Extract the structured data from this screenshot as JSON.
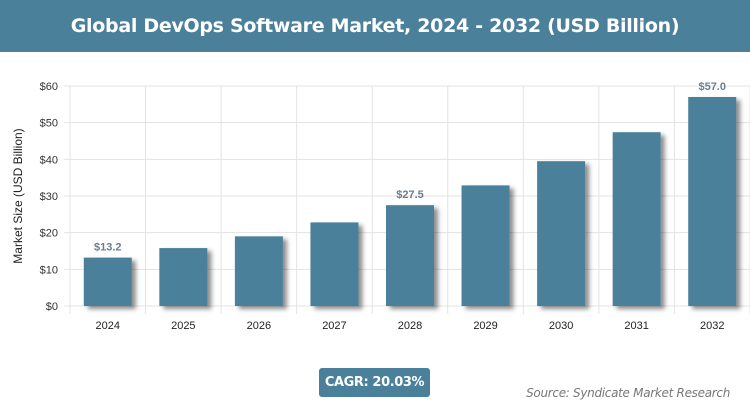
{
  "chart_data": {
    "type": "bar",
    "title": "Global DevOps Software Market, 2024 - 2032 (USD Billion)",
    "ylabel": "Market Size (USD Billion)",
    "xlabel": "",
    "categories": [
      "2024",
      "2025",
      "2026",
      "2027",
      "2028",
      "2029",
      "2030",
      "2031",
      "2032"
    ],
    "values": [
      13.2,
      15.8,
      19.0,
      22.8,
      27.5,
      32.9,
      39.5,
      47.4,
      57.0
    ],
    "data_labels": {
      "0": "$13.2",
      "4": "$27.5",
      "8": "$57.0"
    },
    "ylim": [
      0,
      60
    ],
    "yticks": [
      "$0",
      "$10",
      "$20",
      "$30",
      "$40",
      "$50",
      "$60"
    ],
    "grid": true,
    "bar_color": "#4b809b"
  },
  "footer": {
    "cagr": "CAGR: 20.03%",
    "source": "Source: Syndicate Market Research"
  }
}
